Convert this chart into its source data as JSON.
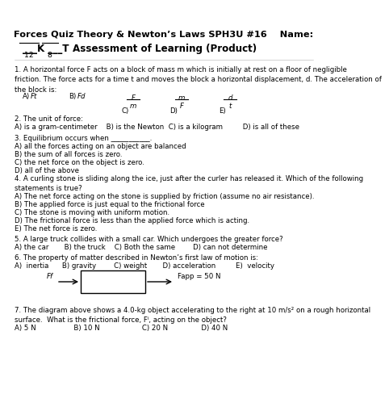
{
  "bg_color": "#ffffff",
  "text_color": "#000000",
  "title": "Forces Quiz Theory & Newton’s Laws SPH3U #16    Name:",
  "subtitle_left": "___K ___T",
  "subtitle_right": "Assessment of Learning (Product)",
  "score_left": "12",
  "score_right": "8",
  "font_size_title": 7.8,
  "font_size_body": 6.2,
  "q1_text": "1. A horizontal force F acts on a block of mass m which is initially at rest on a floor of negligible\nfriction. The force acts for a time t and moves the block a horizontal displacement, d. The acceleration of\nthe block is:",
  "q2_text": "2. The unit of force:",
  "q2_choices": "A) is a gram-centimeter    B) is the Newton  C) is a kilogram         D) is all of these",
  "q3_text": "3. Equilibrium occurs when ___________.",
  "q3_choices": [
    "A) all the forces acting on an object are balanced",
    "B) the sum of all forces is zero.",
    "C) the net force on the object is zero.",
    "D) all of the above"
  ],
  "q4_text": "4. A curling stone is sliding along the ice, just after the curler has released it. Which of the following\nstatements is true?",
  "q4_choices": [
    "A) The net force acting on the stone is supplied by friction (assume no air resistance).",
    "B) The applied force is just equal to the frictional force",
    "C) The stone is moving with uniform motion.",
    "D) The frictional force is less than the applied force which is acting.",
    "E) The net force is zero."
  ],
  "q5_text": "5. A large truck collides with a small car. Which undergoes the greater force?",
  "q5_choices": "A) the car       B) the truck    C) Both the same        D) can not determine",
  "q6_text": "6. The property of matter described in Newton’s first law of motion is:",
  "q6_choices": "A)  inertia      B) gravity        C) weight       D) acceleration         E)  velocity",
  "q7_text": "7. The diagram above shows a 4.0-kg object accelerating to the right at 10 m/s² on a rough horizontal\nsurface.  What is the frictional force, Fⁱ, acting on the object?",
  "q7_choices": "A) 5 N                 B) 10 N                   C) 20 N               D) 40 N",
  "diagram_ff": "Ff",
  "diagram_fapp": "Fapp = 50 N"
}
